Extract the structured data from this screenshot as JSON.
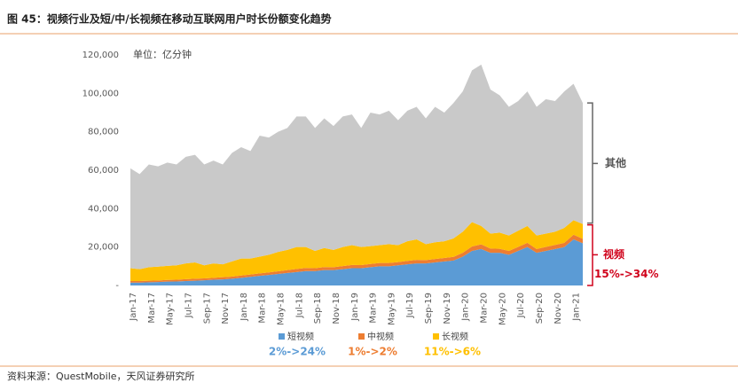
{
  "chart_data": {
    "type": "stacked_area",
    "title": "图 45：视频行业及短/中/长视频在移动互联网用户时长份额变化趋势",
    "unit_label": "单位：亿分钟",
    "source": "资料来源：QuestMobile，天风证券研究所",
    "group_label": "视频",
    "group_change": "15%->34%",
    "categories": [
      "Jan-17",
      null,
      "Mar-17",
      null,
      "May-17",
      null,
      "Jul-17",
      null,
      "Sep-17",
      null,
      "Nov-17",
      null,
      "Jan-18",
      null,
      "Mar-18",
      null,
      "May-18",
      null,
      "Jul-18",
      null,
      "Sep-18",
      null,
      "Nov-18",
      null,
      "Jan-19",
      null,
      "Mar-19",
      null,
      "May-19",
      null,
      "Jul-19",
      null,
      "Sep-19",
      null,
      "Nov-19",
      null,
      "Jan-20",
      null,
      "Mar-20",
      null,
      "May-20",
      null,
      "Jul-20",
      null,
      "Sep-20",
      null,
      "Nov-20",
      null,
      "Jan-21",
      null
    ],
    "ylim": [
      0,
      120000
    ],
    "yticks": [
      {
        "value": 0,
        "label": "-"
      },
      {
        "value": 20000,
        "label": "20,000"
      },
      {
        "value": 40000,
        "label": "40,000"
      },
      {
        "value": 60000,
        "label": "60,000"
      },
      {
        "value": 80000,
        "label": "80,000"
      },
      {
        "value": 100000,
        "label": "100,000"
      },
      {
        "value": 120000,
        "label": "120,000"
      }
    ],
    "series": [
      {
        "name": "短视频",
        "color": "#5b9bd5",
        "share_change": "2%->24%",
        "values": [
          1500,
          1500,
          1700,
          1800,
          2000,
          2100,
          2300,
          2500,
          2700,
          3000,
          3200,
          3500,
          4000,
          4500,
          5000,
          5500,
          6000,
          6500,
          7000,
          7500,
          7500,
          8000,
          8000,
          8500,
          9000,
          9000,
          9500,
          10000,
          10000,
          10500,
          11000,
          11500,
          11500,
          12000,
          12500,
          13000,
          15000,
          18000,
          19000,
          17000,
          17000,
          16000,
          18000,
          20000,
          17000,
          18000,
          19000,
          20000,
          24000,
          22000
        ]
      },
      {
        "name": "中视频",
        "color": "#ed7d31",
        "share_change": "1%->2%",
        "values": [
          800,
          800,
          800,
          800,
          900,
          900,
          1000,
          1000,
          1000,
          1000,
          1100,
          1100,
          1200,
          1200,
          1300,
          1300,
          1400,
          1500,
          1600,
          1600,
          1500,
          1600,
          1500,
          1600,
          1700,
          1600,
          1700,
          1700,
          1700,
          1700,
          1800,
          1800,
          1700,
          1800,
          1800,
          1900,
          2000,
          2300,
          2400,
          2200,
          2100,
          2000,
          2100,
          2200,
          2000,
          2100,
          2100,
          2200,
          2400,
          2300
        ]
      },
      {
        "name": "长视频",
        "color": "#ffc000",
        "share_change": "11%->6%",
        "values": [
          6700,
          6200,
          7000,
          7200,
          7300,
          7500,
          8200,
          8500,
          6800,
          7500,
          6700,
          7900,
          8800,
          8300,
          8700,
          9200,
          10100,
          10500,
          11400,
          10900,
          9000,
          9900,
          9000,
          9900,
          10300,
          9400,
          9300,
          9300,
          9800,
          8800,
          10200,
          10700,
          8300,
          8700,
          8700,
          9600,
          11000,
          12700,
          9600,
          7800,
          8400,
          8000,
          8400,
          8800,
          7000,
          6900,
          6900,
          7800,
          7600,
          7700
        ]
      },
      {
        "name": "其他",
        "color": "#c9c9c9",
        "values": [
          52000,
          49500,
          53500,
          52200,
          53800,
          52500,
          55500,
          56000,
          52500,
          53500,
          52000,
          56500,
          58000,
          56000,
          63000,
          61000,
          62500,
          63500,
          68000,
          68000,
          64000,
          67500,
          64500,
          68000,
          68000,
          62000,
          69500,
          68000,
          69500,
          65000,
          68000,
          69000,
          65500,
          70500,
          67000,
          70500,
          73000,
          79000,
          84000,
          75000,
          71500,
          67000,
          67500,
          70000,
          67000,
          70000,
          68000,
          71000,
          71000,
          63000
        ]
      }
    ]
  }
}
